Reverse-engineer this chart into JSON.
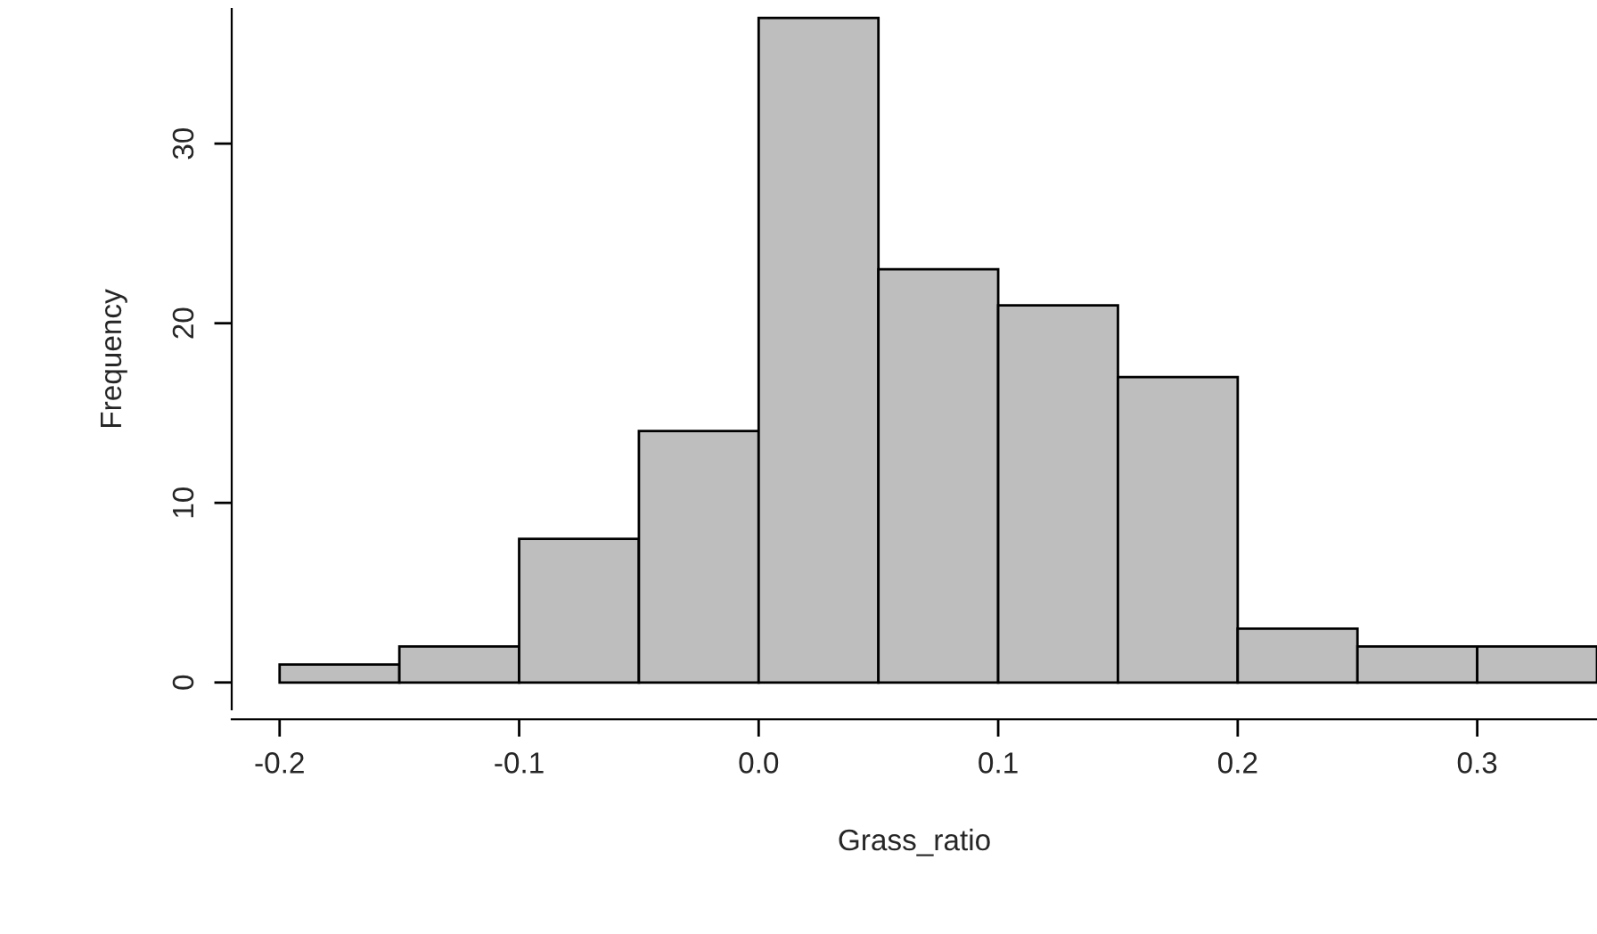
{
  "chart_data": {
    "type": "histogram",
    "xlabel": "Grass_ratio",
    "ylabel": "Frequency",
    "bins": [
      -0.2,
      -0.15,
      -0.1,
      -0.05,
      0.0,
      0.05,
      0.1,
      0.15,
      0.2,
      0.25,
      0.3,
      0.35
    ],
    "values": [
      1,
      2,
      8,
      14,
      37,
      23,
      21,
      17,
      3,
      2,
      2
    ],
    "color": "#bebebe",
    "xlim": [
      -0.22,
      0.35
    ],
    "ylim": [
      -1.5,
      37.5
    ],
    "xticks": [
      -0.2,
      -0.1,
      {
        "value": 0.0,
        "label": "0.0"
      },
      0.1,
      0.2,
      0.3
    ],
    "yticks": [
      0,
      10,
      20,
      30
    ],
    "grid": false
  }
}
